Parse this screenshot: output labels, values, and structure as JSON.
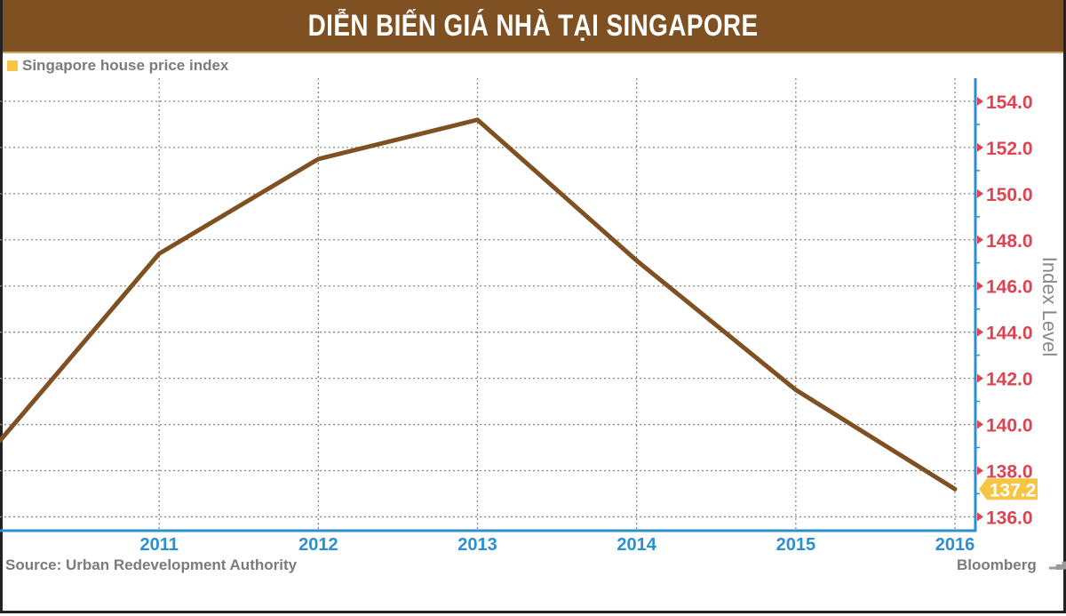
{
  "title": "DIỄN BIẾN GIÁ NHÀ TẠI SINGAPORE",
  "source": "Source: Urban Redevelopment Authority",
  "brand": "Bloomberg",
  "brand_icon": "bar-chart-icon",
  "colors": {
    "title_bar": "#7f5022",
    "line": "#7f5022",
    "axis": "#2b8fd0",
    "y_ticks": "#e0434f",
    "badge": "#f7c544",
    "legend": "#f7c544"
  },
  "chart_data": {
    "type": "line",
    "legend": {
      "entries": [
        "Singapore house price index"
      ],
      "placement": "top-left"
    },
    "ylabel": "Index Level",
    "y_axis_side": "right",
    "ylim": [
      135.4,
      155.0
    ],
    "xlim": [
      2010,
      2016.1
    ],
    "grid": true,
    "x_ticks": [
      "2011",
      "2012",
      "2013",
      "2014",
      "2015",
      "2016"
    ],
    "y_ticks": [
      "136.0",
      "138.0",
      "140.0",
      "142.0",
      "144.0",
      "146.0",
      "148.0",
      "150.0",
      "152.0",
      "154.0"
    ],
    "series": [
      {
        "name": "Singapore house price index",
        "x": [
          2010,
          2011,
          2012,
          2013,
          2014,
          2015,
          2016
        ],
        "y": [
          139.3,
          147.4,
          151.5,
          153.2,
          147.1,
          141.5,
          137.2
        ]
      }
    ],
    "last_value_label": "137.2"
  }
}
